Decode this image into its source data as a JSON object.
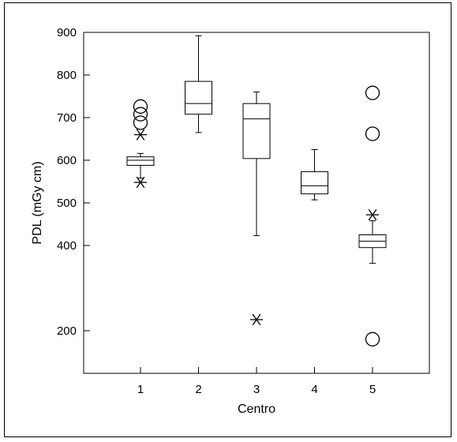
{
  "chart_data": {
    "type": "boxplot",
    "title": "",
    "xlabel": "Centro",
    "ylabel": "PDL (mGy cm)",
    "ylim": [
      100,
      900
    ],
    "yticks": [
      200,
      400,
      500,
      600,
      700,
      800,
      900
    ],
    "categories": [
      "1",
      "2",
      "3",
      "4",
      "5"
    ],
    "grid": false,
    "boxes": [
      {
        "category": "1",
        "whisker_low": 558,
        "q1": 588,
        "median": 600,
        "q3": 608,
        "whisker_high": 616,
        "outliers": [
          {
            "value": 548,
            "marker": "star"
          },
          {
            "value": 660,
            "marker": "star"
          },
          {
            "value": 688,
            "marker": "circle"
          },
          {
            "value": 708,
            "marker": "circle"
          },
          {
            "value": 726,
            "marker": "circle"
          }
        ]
      },
      {
        "category": "2",
        "whisker_low": 665,
        "q1": 708,
        "median": 733,
        "q3": 785,
        "whisker_high": 892,
        "outliers": []
      },
      {
        "category": "3",
        "whisker_low": 423,
        "q1": 604,
        "median": 697,
        "q3": 733,
        "whisker_high": 760,
        "outliers": [
          {
            "value": 226,
            "marker": "star"
          }
        ]
      },
      {
        "category": "4",
        "whisker_low": 507,
        "q1": 521,
        "median": 540,
        "q3": 573,
        "whisker_high": 625,
        "outliers": []
      },
      {
        "category": "5",
        "whisker_low": 358,
        "q1": 395,
        "median": 410,
        "q3": 425,
        "whisker_high": 458,
        "outliers": [
          {
            "value": 180,
            "marker": "circle"
          },
          {
            "value": 472,
            "marker": "star"
          },
          {
            "value": 662,
            "marker": "circle"
          },
          {
            "value": 758,
            "marker": "circle"
          }
        ]
      }
    ]
  }
}
